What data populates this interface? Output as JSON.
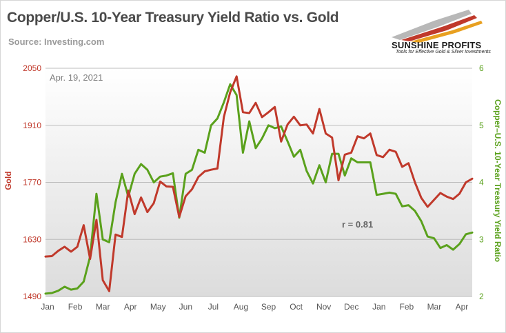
{
  "header": {
    "title": "Copper/U.S. 10-Year Treasury Yield Ratio vs. Gold",
    "source": "Source: Investing.com"
  },
  "logo": {
    "name": "SUNSHINE PROFITS",
    "tagline": "Tools for Effective Gold & Silver Investments"
  },
  "colors": {
    "gold_series": "#c0392b",
    "ratio_series": "#5aa11c",
    "grid": "#bcbcbc",
    "plot_bg_top": "#ffffff",
    "plot_bg_bottom": "#dcdcdc",
    "title": "#4a4a4a"
  },
  "chart_data": {
    "type": "line",
    "date_label": "Apr. 19, 2021",
    "annotation": "r = 0.81",
    "x_tick_labels": [
      "Jan",
      "Feb",
      "Mar",
      "Apr",
      "May",
      "Jun",
      "Jul",
      "Aug",
      "Sep",
      "Oct",
      "Nov",
      "Dec",
      "Jan",
      "Feb",
      "Mar",
      "Apr"
    ],
    "y_left": {
      "label": "Gold",
      "lim": [
        1490,
        2050
      ],
      "ticks": [
        1490,
        1630,
        1770,
        1910,
        2050
      ]
    },
    "y_right": {
      "label": "Copper–U.S. 10-Year Treasury Yield Ratio",
      "lim": [
        2,
        6
      ],
      "ticks": [
        2,
        3,
        4,
        5,
        6
      ]
    },
    "x_unit": "weeks from first week of Jan 2020",
    "series": [
      {
        "name": "Gold",
        "axis": "left",
        "x": [
          0,
          1,
          2,
          3,
          4,
          5,
          6,
          7,
          8,
          9,
          10,
          11,
          12,
          13,
          14,
          15,
          16,
          17,
          18,
          19,
          20,
          21,
          22,
          23,
          24,
          25,
          26,
          27,
          28,
          29,
          30,
          31,
          32,
          33,
          34,
          35,
          36,
          37,
          38,
          39,
          40,
          41,
          42,
          43,
          44,
          45,
          46,
          47,
          48,
          49,
          50,
          51,
          52,
          53,
          54,
          55,
          56,
          57,
          58,
          59,
          60,
          61,
          62,
          63,
          64,
          65,
          66,
          67
        ],
        "y": [
          1588,
          1589,
          1602,
          1612,
          1600,
          1612,
          1665,
          1582,
          1678,
          1530,
          1503,
          1642,
          1636,
          1750,
          1692,
          1733,
          1697,
          1719,
          1772,
          1760,
          1759,
          1685,
          1736,
          1753,
          1783,
          1797,
          1801,
          1804,
          1930,
          1991,
          2030,
          1942,
          1940,
          1965,
          1930,
          1942,
          1955,
          1870,
          1912,
          1931,
          1910,
          1912,
          1890,
          1950,
          1890,
          1880,
          1775,
          1838,
          1843,
          1883,
          1878,
          1890,
          1837,
          1832,
          1850,
          1845,
          1808,
          1817,
          1770,
          1732,
          1710,
          1727,
          1744,
          1735,
          1729,
          1742,
          1770,
          1779
        ]
      },
      {
        "name": "Copper–U.S. 10-Year Treasury Yield Ratio",
        "axis": "right",
        "x": [
          0,
          1,
          2,
          3,
          4,
          5,
          6,
          7,
          8,
          9,
          10,
          11,
          12,
          13,
          14,
          15,
          16,
          17,
          18,
          19,
          20,
          21,
          22,
          23,
          24,
          25,
          26,
          27,
          28,
          29,
          30,
          31,
          32,
          33,
          34,
          35,
          36,
          37,
          38,
          39,
          40,
          41,
          42,
          43,
          44,
          45,
          46,
          47,
          48,
          49,
          50,
          51,
          52,
          53,
          54,
          55,
          56,
          57,
          58,
          59,
          60,
          61,
          62,
          63,
          64,
          65,
          66,
          67
        ],
        "y": [
          2.05,
          2.06,
          2.1,
          2.17,
          2.12,
          2.14,
          2.26,
          2.7,
          3.8,
          3.0,
          2.95,
          3.65,
          4.15,
          3.75,
          4.15,
          4.32,
          4.22,
          4.0,
          4.1,
          4.12,
          4.16,
          3.38,
          4.15,
          4.22,
          4.57,
          4.52,
          5.0,
          5.12,
          5.4,
          5.72,
          5.53,
          4.52,
          5.07,
          4.6,
          4.77,
          5.0,
          4.95,
          4.98,
          4.72,
          4.45,
          4.57,
          4.2,
          3.98,
          4.3,
          4.0,
          4.5,
          4.5,
          4.12,
          4.42,
          4.35,
          4.35,
          4.35,
          3.78,
          3.8,
          3.82,
          3.8,
          3.58,
          3.6,
          3.5,
          3.32,
          3.05,
          3.02,
          2.85,
          2.9,
          2.82,
          2.92,
          3.09,
          3.12
        ]
      }
    ],
    "grid": true
  }
}
